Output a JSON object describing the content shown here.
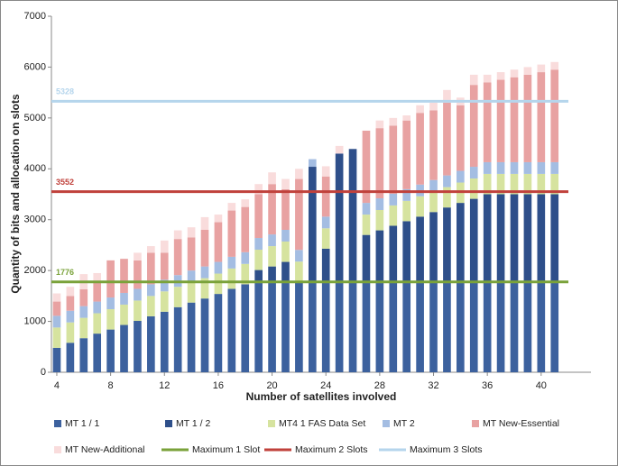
{
  "chart_data": {
    "type": "bar",
    "stacked": true,
    "x_label": "Number of satellites involved",
    "y_label": "Quantity of bits and allocation on slots",
    "x": [
      4,
      5,
      6,
      7,
      8,
      9,
      10,
      11,
      12,
      13,
      14,
      15,
      16,
      17,
      18,
      19,
      20,
      21,
      22,
      23,
      24,
      25,
      26,
      27,
      28,
      29,
      30,
      31,
      32,
      33,
      34,
      35,
      36,
      37,
      38,
      39,
      40,
      41
    ],
    "xlim": [
      3.6,
      43.7
    ],
    "xticks": [
      4,
      8,
      12,
      16,
      20,
      24,
      28,
      32,
      36,
      40
    ],
    "ylim": [
      0,
      7000
    ],
    "yticks": [
      0,
      1000,
      2000,
      3000,
      4000,
      5000,
      6000,
      7000
    ],
    "series": [
      {
        "name": "MT 1 / 1",
        "color": "#3c619e",
        "values": [
          480,
          580,
          670,
          760,
          840,
          930,
          1010,
          1100,
          1190,
          1280,
          1370,
          1450,
          1540,
          1640,
          1730,
          1776,
          1776,
          1776,
          1776,
          1776,
          1776,
          1776,
          1776,
          1776,
          1776,
          1776,
          1776,
          1776,
          1776,
          1776,
          1776,
          1776,
          1776,
          1776,
          1776,
          1776,
          1776,
          1776
        ]
      },
      {
        "name": "MT 1 / 2",
        "color": "#2e4f8a",
        "values": [
          0,
          0,
          0,
          0,
          0,
          0,
          0,
          0,
          0,
          0,
          0,
          0,
          0,
          0,
          0,
          234,
          304,
          394,
          0,
          2264,
          654,
          2524,
          2614,
          924,
          1014,
          1104,
          1194,
          1284,
          1374,
          1464,
          1554,
          1634,
          1724,
          1724,
          1724,
          1724,
          1724,
          1724
        ]
      },
      {
        "name": "MT4 1 FAS Data Set",
        "color": "#d6e39f",
        "values": [
          400,
          400,
          400,
          400,
          400,
          400,
          400,
          400,
          400,
          400,
          400,
          400,
          400,
          400,
          400,
          400,
          400,
          400,
          400,
          0,
          400,
          0,
          0,
          400,
          400,
          400,
          400,
          400,
          400,
          400,
          400,
          400,
          400,
          400,
          400,
          400,
          400,
          400
        ]
      },
      {
        "name": "MT 2",
        "color": "#a4bde2",
        "values": [
          230,
          230,
          230,
          230,
          230,
          230,
          230,
          230,
          230,
          230,
          230,
          230,
          230,
          230,
          230,
          230,
          230,
          230,
          230,
          150,
          230,
          0,
          0,
          230,
          230,
          230,
          230,
          230,
          230,
          230,
          230,
          230,
          230,
          230,
          230,
          230,
          230,
          230
        ]
      },
      {
        "name": "MT New-Essential",
        "color": "#e8a2a2",
        "values": [
          280,
          290,
          330,
          410,
          730,
          670,
          560,
          620,
          530,
          710,
          650,
          720,
          780,
          910,
          890,
          860,
          990,
          800,
          1394,
          0,
          790,
          0,
          0,
          1420,
          1380,
          1340,
          1350,
          1410,
          1370,
          1430,
          1290,
          1610,
          1570,
          1620,
          1670,
          1720,
          1770,
          1820
        ]
      },
      {
        "name": "MT New-Additional",
        "color": "#f9dcdc",
        "values": [
          160,
          180,
          300,
          150,
          0,
          0,
          150,
          130,
          240,
          170,
          200,
          250,
          150,
          150,
          150,
          200,
          230,
          200,
          200,
          0,
          200,
          150,
          0,
          0,
          150,
          150,
          100,
          150,
          150,
          250,
          150,
          200,
          150,
          150,
          150,
          150,
          150,
          150
        ]
      }
    ],
    "hlines": [
      {
        "name": "Maximum 1 Slot",
        "color": "#7aa23a",
        "value": 1776
      },
      {
        "name": "Maximum 2 Slots",
        "color": "#c0413b",
        "value": 3552
      },
      {
        "name": "Maximum 3 Slots",
        "color": "#b5d5ec",
        "value": 5328
      }
    ]
  }
}
